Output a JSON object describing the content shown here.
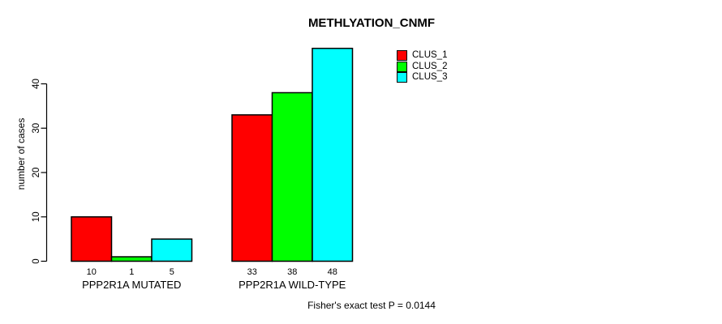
{
  "chart_data": {
    "type": "bar",
    "title": "METHLYATION_CNMF",
    "ylabel": "number of cases",
    "xlabel": "",
    "categories": [
      "PPP2R1A MUTATED",
      "PPP2R1A WILD-TYPE"
    ],
    "series": [
      {
        "name": "CLUS_1",
        "color": "#ff0000",
        "values": [
          10,
          33
        ]
      },
      {
        "name": "CLUS_2",
        "color": "#00ff00",
        "values": [
          1,
          38
        ]
      },
      {
        "name": "CLUS_3",
        "color": "#00ffff",
        "values": [
          5,
          48
        ]
      }
    ],
    "yticks": [
      0,
      10,
      20,
      30,
      40
    ],
    "ylim": [
      0,
      40
    ],
    "show_value_labels": true,
    "grid": false,
    "legend_position": "top-right",
    "annotation": "Fisher's exact test P = 0.0144",
    "axis_color": "#000000",
    "bar_border_color": "#000000",
    "background": "#ffffff"
  }
}
